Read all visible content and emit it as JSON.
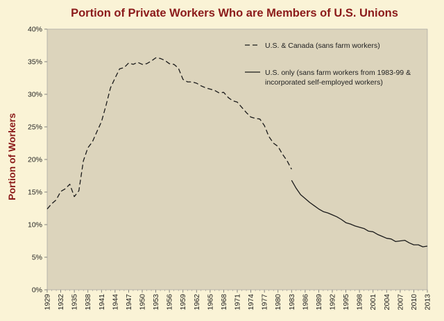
{
  "chart_data": {
    "type": "line",
    "title": "Portion of Private Workers Who are Members of U.S. Unions",
    "xlabel": "",
    "ylabel": "Portion of Workers",
    "xlim": [
      1929,
      2013
    ],
    "ylim": [
      0,
      40
    ],
    "y_ticks": [
      0,
      5,
      10,
      15,
      20,
      25,
      30,
      35,
      40
    ],
    "y_tick_labels": [
      "0%",
      "5%",
      "10%",
      "15%",
      "20%",
      "25%",
      "30%",
      "35%",
      "40%"
    ],
    "x_ticks": [
      1929,
      1932,
      1935,
      1938,
      1941,
      1944,
      1947,
      1950,
      1953,
      1956,
      1959,
      1962,
      1965,
      1968,
      1971,
      1974,
      1977,
      1980,
      1983,
      1986,
      1989,
      1992,
      1995,
      1998,
      2001,
      2004,
      2007,
      2010,
      2013
    ],
    "x_tick_labels": [
      "1929",
      "1932",
      "1935",
      "1938",
      "1941",
      "1944",
      "1947",
      "1950",
      "1953",
      "1956",
      "1959",
      "1962",
      "1965",
      "1968",
      "1971",
      "1974",
      "1977",
      "1980",
      "1983",
      "1986",
      "1989",
      "1992",
      "1995",
      "1998",
      "2001",
      "2004",
      "2007",
      "2010",
      "2013"
    ],
    "grid": false,
    "plot_background": "#dcd4bc",
    "page_background": "#faf3d6",
    "title_color": "#8b1a1a",
    "line_color": "#1a1a1a",
    "legend_placement": "top-right",
    "series": [
      {
        "name": "U.S. & Canada (sans farm workers)",
        "style": "dashed",
        "x": [
          1929,
          1930,
          1931,
          1932,
          1933,
          1934,
          1935,
          1936,
          1937,
          1938,
          1939,
          1940,
          1941,
          1942,
          1943,
          1944,
          1945,
          1946,
          1947,
          1948,
          1949,
          1950,
          1951,
          1952,
          1953,
          1954,
          1955,
          1956,
          1957,
          1958,
          1959,
          1960,
          1961,
          1962,
          1963,
          1964,
          1965,
          1966,
          1967,
          1968,
          1969,
          1970,
          1971,
          1972,
          1973,
          1974,
          1975,
          1976,
          1977,
          1978,
          1979,
          1980,
          1981,
          1982,
          1983
        ],
        "values": [
          12.4,
          13.2,
          13.8,
          15.1,
          15.5,
          16.2,
          14.3,
          15.2,
          19.8,
          21.8,
          22.7,
          24.3,
          25.8,
          28.3,
          31.0,
          32.5,
          33.9,
          34.1,
          34.8,
          34.6,
          34.9,
          34.6,
          34.7,
          35.1,
          35.6,
          35.5,
          35.2,
          34.7,
          34.6,
          34.0,
          32.3,
          31.9,
          31.9,
          31.7,
          31.3,
          31.0,
          30.8,
          30.6,
          30.2,
          30.3,
          29.5,
          29.0,
          28.8,
          28.0,
          27.2,
          26.5,
          26.3,
          26.2,
          25.2,
          23.5,
          22.5,
          22.0,
          20.8,
          19.8,
          18.5
        ]
      },
      {
        "name": "U.S. only (sans farm workers from 1983-99 & incorporated self-employed workers)",
        "style": "solid",
        "x": [
          1983,
          1984,
          1985,
          1986,
          1987,
          1988,
          1989,
          1990,
          1991,
          1992,
          1993,
          1994,
          1995,
          1996,
          1997,
          1998,
          1999,
          2000,
          2001,
          2002,
          2003,
          2004,
          2005,
          2006,
          2007,
          2008,
          2009,
          2010,
          2011,
          2012,
          2013
        ],
        "values": [
          16.8,
          15.6,
          14.6,
          14.0,
          13.4,
          12.9,
          12.4,
          12.0,
          11.8,
          11.5,
          11.2,
          10.8,
          10.3,
          10.1,
          9.8,
          9.6,
          9.4,
          9.0,
          8.9,
          8.5,
          8.2,
          7.9,
          7.8,
          7.4,
          7.5,
          7.6,
          7.2,
          6.9,
          6.9,
          6.6,
          6.7
        ]
      }
    ]
  }
}
